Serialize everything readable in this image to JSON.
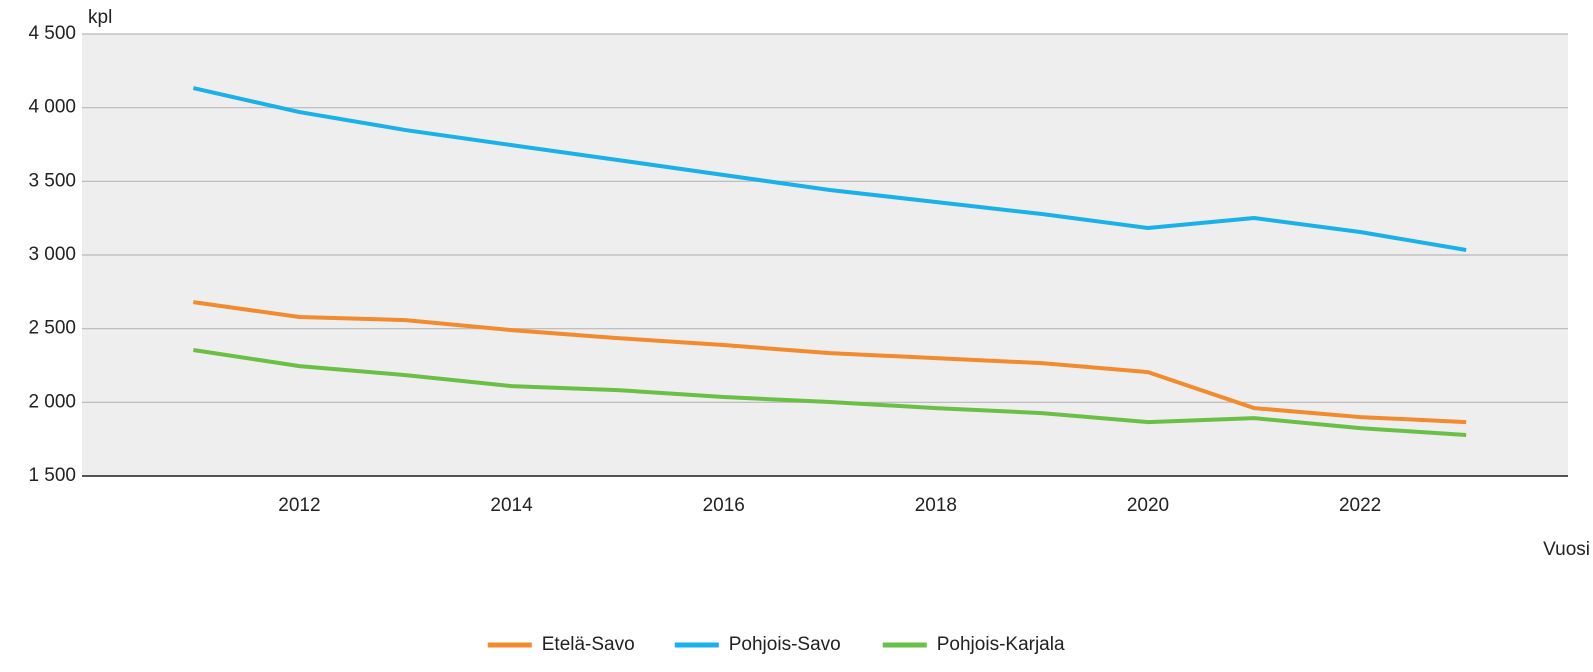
{
  "chart_data": {
    "type": "line",
    "y_label": "kpl",
    "x_label": "Vuosi",
    "x": [
      2011,
      2012,
      2013,
      2014,
      2015,
      2016,
      2017,
      2018,
      2019,
      2020,
      2021,
      2022,
      2023
    ],
    "series": [
      {
        "name": "Etelä-Savo",
        "color": "#f28a2e",
        "values": [
          2680,
          2579,
          2558,
          2490,
          2436,
          2389,
          2334,
          2300,
          2266,
          2205,
          1961,
          1900,
          1866
        ]
      },
      {
        "name": "Pohjois-Savo",
        "color": "#1ab0e8",
        "values": [
          4133,
          3970,
          3848,
          3746,
          3645,
          3543,
          3441,
          3360,
          3278,
          3183,
          3251,
          3156,
          3034
        ]
      },
      {
        "name": "Pohjois-Karjala",
        "color": "#6abf45",
        "values": [
          2355,
          2246,
          2185,
          2110,
          2083,
          2036,
          2002,
          1961,
          1927,
          1866,
          1893,
          1825,
          1778
        ]
      }
    ],
    "xlim": [
      2009.95,
      2023.96
    ],
    "xticks": [
      2012,
      2014,
      2016,
      2018,
      2020,
      2022
    ],
    "ylim": [
      1500,
      4500
    ],
    "yticks": [
      {
        "value": 1500,
        "label": "1 500"
      },
      {
        "value": 2000,
        "label": "2 000"
      },
      {
        "value": 2500,
        "label": "2 500"
      },
      {
        "value": 3000,
        "label": "3 000"
      },
      {
        "value": 3500,
        "label": "3 500"
      },
      {
        "value": 4000,
        "label": "4 000"
      },
      {
        "value": 4500,
        "label": "4 500"
      }
    ],
    "grid": true
  }
}
